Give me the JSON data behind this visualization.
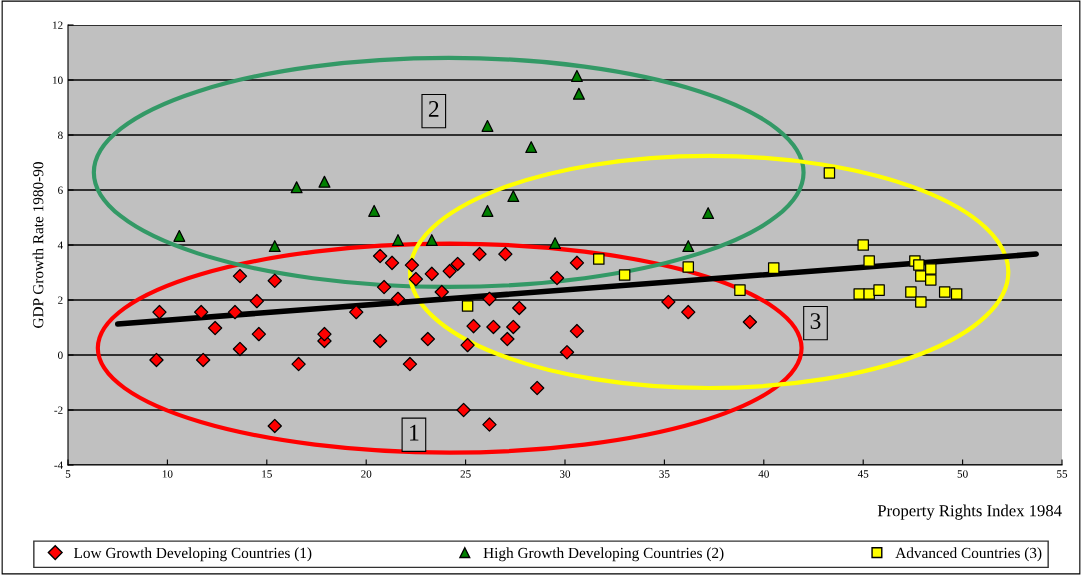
{
  "chart_data": {
    "type": "scatter",
    "xlabel": "Property Rights Index 1984",
    "ylabel": "GDP Growth Rate 1980-90",
    "xlim": [
      5,
      55
    ],
    "xticks": [
      5,
      10,
      15,
      20,
      25,
      30,
      35,
      40,
      45,
      50,
      55
    ],
    "ylim": [
      -4,
      12
    ],
    "yticks": [
      -4,
      -2,
      0,
      2,
      4,
      6,
      8,
      10,
      12
    ],
    "grid": "y",
    "legend": "bottom",
    "annotations": [
      "1",
      "2",
      "3"
    ],
    "series": [
      {
        "name": "Low Growth Developing Countries (1)",
        "color": "#ff0000",
        "marker": "diamond",
        "x": [
          9.45,
          9.6,
          11.7,
          11.8,
          12.4,
          13.4,
          13.65,
          13.65,
          14.5,
          14.6,
          15.4,
          15.4,
          16.6,
          17.9,
          17.9,
          19.5,
          20.7,
          20.7,
          20.9,
          21.3,
          21.6,
          22.2,
          22.3,
          22.5,
          23.1,
          23.3,
          23.8,
          24.2,
          24.6,
          24.9,
          25.1,
          25.4,
          25.7,
          26.2,
          26.2,
          26.4,
          27.0,
          27.1,
          27.4,
          27.7,
          28.6,
          29.6,
          30.1,
          30.6,
          30.6,
          35.2,
          36.2,
          39.3
        ],
        "values": [
          -0.18,
          1.56,
          1.56,
          -0.18,
          0.98,
          1.56,
          2.87,
          0.22,
          1.96,
          0.76,
          2.7,
          -2.58,
          -0.33,
          0.51,
          0.76,
          1.56,
          3.6,
          0.51,
          2.47,
          3.35,
          2.04,
          -0.33,
          3.27,
          2.76,
          0.58,
          2.95,
          2.29,
          3.05,
          3.31,
          -2.0,
          0.36,
          1.05,
          3.67,
          2.04,
          -2.53,
          1.02,
          3.67,
          0.58,
          1.02,
          1.71,
          -1.2,
          2.8,
          0.1,
          3.35,
          0.87,
          1.93,
          1.56,
          1.2
        ]
      },
      {
        "name": "High Growth Developing Countries (2)",
        "color": "#008000",
        "marker": "triangle",
        "x": [
          10.6,
          15.4,
          16.5,
          17.9,
          20.4,
          21.6,
          23.3,
          26.1,
          26.1,
          27.4,
          28.3,
          29.5,
          30.6,
          30.7,
          36.2,
          37.2
        ],
        "values": [
          4.33,
          3.96,
          6.1,
          6.3,
          5.24,
          4.18,
          4.18,
          8.33,
          5.24,
          5.78,
          7.56,
          4.07,
          10.15,
          9.5,
          3.96,
          5.16
        ]
      },
      {
        "name": "Advanced Countries (3)",
        "color": "#ffff00",
        "marker": "square",
        "x": [
          25.1,
          31.7,
          33.0,
          36.2,
          38.8,
          40.5,
          43.3,
          45.0,
          45.3,
          44.8,
          45.3,
          45.8,
          47.6,
          47.8,
          47.4,
          47.9,
          47.9,
          48.4,
          48.4,
          49.1,
          49.7
        ],
        "values": [
          1.78,
          3.49,
          2.91,
          3.2,
          2.36,
          3.16,
          6.62,
          4.0,
          3.42,
          2.22,
          2.22,
          2.36,
          3.42,
          3.27,
          2.29,
          2.87,
          1.93,
          3.13,
          2.73,
          2.29,
          2.22
        ]
      },
      {
        "type": "line",
        "color": "#000000",
        "marker": "none",
        "x": [
          7.5,
          53.7
        ],
        "values": [
          1.13,
          3.67
        ]
      }
    ]
  }
}
